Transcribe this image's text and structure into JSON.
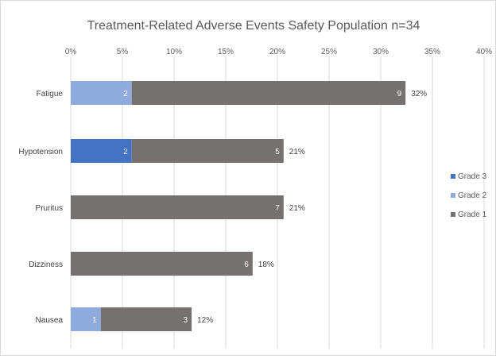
{
  "chart_data": {
    "type": "bar",
    "orientation": "horizontal",
    "stacked": true,
    "title": "Treatment-Related Adverse Events Safety Population n=34",
    "xlabel": "",
    "ylabel": "",
    "xlim": [
      0,
      40
    ],
    "x_ticks": [
      "0%",
      "5%",
      "10%",
      "15%",
      "20%",
      "25%",
      "30%",
      "35%",
      "40%"
    ],
    "grid": true,
    "legend_position": "right",
    "categories": [
      "Fatigue",
      "Hypotension",
      "Pruritus",
      "Dizziness",
      "Nausea"
    ],
    "series": [
      {
        "name": "Grade 3",
        "color": "#4472c4",
        "values": [
          0,
          5.9,
          0,
          0,
          0
        ],
        "counts": [
          null,
          "2",
          null,
          null,
          null
        ]
      },
      {
        "name": "Grade 2",
        "color": "#8faadc",
        "values": [
          5.9,
          0,
          0,
          0,
          2.9
        ],
        "counts": [
          "2",
          null,
          null,
          null,
          "1"
        ]
      },
      {
        "name": "Grade 1",
        "color": "#767171",
        "values": [
          26.5,
          14.7,
          20.6,
          17.6,
          8.8
        ],
        "counts": [
          "9",
          "5",
          "7",
          "6",
          "3"
        ]
      }
    ],
    "total_labels": [
      "32%",
      "21%",
      "21%",
      "18%",
      "12%"
    ],
    "legend_order": [
      "Grade 3",
      "Grade 2",
      "Grade 1"
    ]
  }
}
